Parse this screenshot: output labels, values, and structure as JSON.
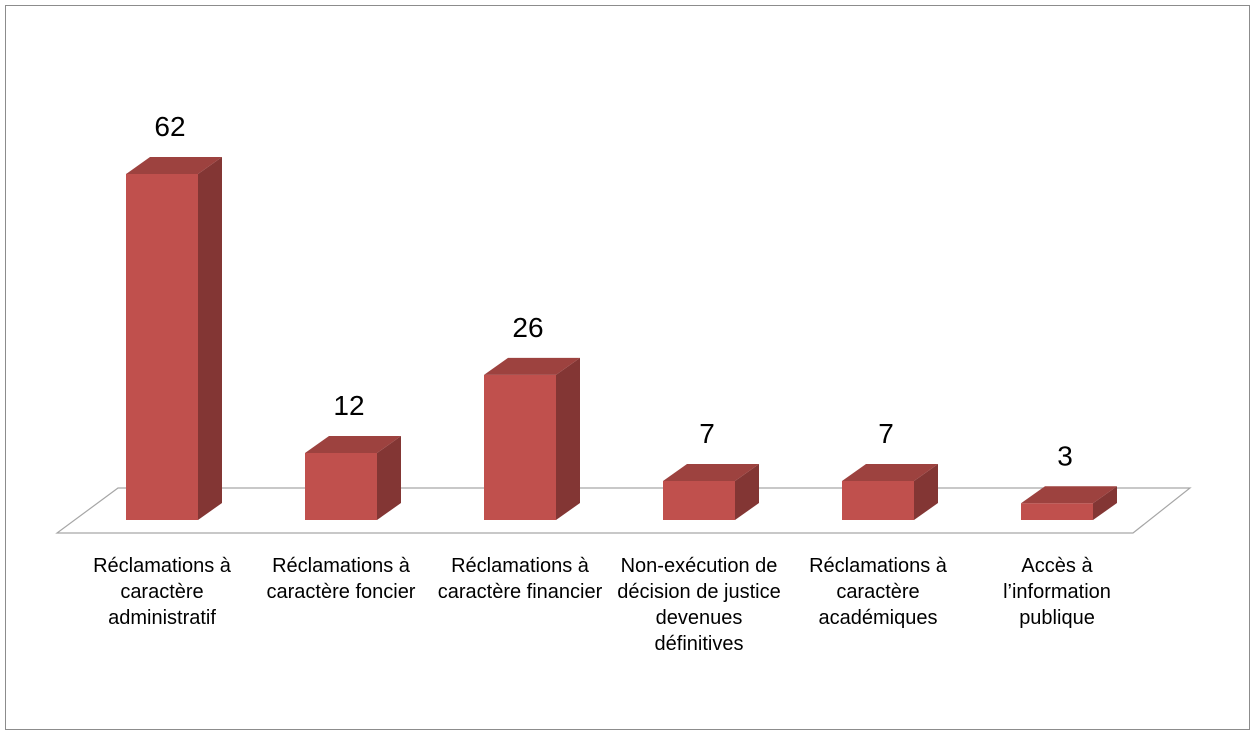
{
  "chart_data": {
    "type": "bar3d",
    "categories": [
      "Réclamations à caractère administratif",
      "Réclamations à caractère foncier",
      "Réclamations à caractère financier",
      "Non-exécution de décision de justice devenues définitives",
      "Réclamations à caractère académiques",
      "Accès à l’information publique"
    ],
    "values": [
      62,
      12,
      26,
      7,
      7,
      3
    ],
    "color": "#c0504d"
  }
}
